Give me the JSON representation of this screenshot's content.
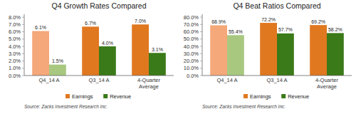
{
  "chart_data": [
    {
      "type": "bar",
      "title": "Q4 Growth Rates Compared",
      "categories": [
        "Q4_14 A",
        "Q3_14 A",
        "4-Quarter\nAverage"
      ],
      "series": [
        {
          "name": "Earnings",
          "color": "#E07820",
          "colors": [
            "#F5A87A",
            "#E07820",
            "#E07820"
          ],
          "values": [
            6.1,
            6.7,
            7.0
          ],
          "value_labels": [
            "6.1%",
            "6.7%",
            "7.0%"
          ]
        },
        {
          "name": "Revenue",
          "color": "#3A7A18",
          "colors": [
            "#A8C880",
            "#3A7A18",
            "#3A7A18"
          ],
          "values": [
            1.5,
            4.0,
            3.1
          ],
          "value_labels": [
            "1.5%",
            "4.0%",
            "3.1%"
          ]
        }
      ],
      "ylim": [
        0,
        8.4
      ],
      "yticks": [
        {
          "value": 0.0,
          "label": "0.0%"
        },
        {
          "value": 1.0,
          "label": "1.0%"
        },
        {
          "value": 2.0,
          "label": "2.0%"
        },
        {
          "value": 3.0,
          "label": "3.0%"
        },
        {
          "value": 4.0,
          "label": "4.0%"
        },
        {
          "value": 5.0,
          "label": "5.0%"
        },
        {
          "value": 6.0,
          "label": "6.0%"
        },
        {
          "value": 7.0,
          "label": "7.0%"
        },
        {
          "value": 8.0,
          "label": "8.0%"
        }
      ],
      "data_labels": true,
      "legend": "bottom",
      "annotations": [
        "Source: Zacks Investment Research Inc."
      ]
    },
    {
      "type": "bar",
      "title": "Q4 Beat Ratios Compared",
      "categories": [
        "Q4_14 A",
        "Q3_14 A",
        "4-Quarter\nAverage"
      ],
      "series": [
        {
          "name": "Earnings",
          "color": "#E07820",
          "colors": [
            "#F5A87A",
            "#E07820",
            "#E07820"
          ],
          "values": [
            68.9,
            72.2,
            69.2
          ],
          "value_labels": [
            "68.9%",
            "72.2%",
            "69.2%"
          ]
        },
        {
          "name": "Revenue",
          "color": "#3A7A18",
          "colors": [
            "#A8C880",
            "#3A7A18",
            "#3A7A18"
          ],
          "values": [
            55.4,
            57.7,
            58.2
          ],
          "value_labels": [
            "55.4%",
            "57.7%",
            "58.2%"
          ]
        }
      ],
      "ylim": [
        0,
        84
      ],
      "yticks": [
        {
          "value": 0.0,
          "label": "0.0%"
        },
        {
          "value": 10.0,
          "label": "10.0%"
        },
        {
          "value": 20.0,
          "label": "20.0%"
        },
        {
          "value": 30.0,
          "label": "30.0%"
        },
        {
          "value": 40.0,
          "label": "40.0%"
        },
        {
          "value": 50.0,
          "label": "50.0%"
        },
        {
          "value": 60.0,
          "label": "60.0%"
        },
        {
          "value": 70.0,
          "label": "70.0%"
        },
        {
          "value": 80.0,
          "label": "80.0%"
        }
      ],
      "data_labels": true,
      "legend": "bottom",
      "annotations": [
        "Source: Zacks Investment Research Inc."
      ]
    }
  ]
}
